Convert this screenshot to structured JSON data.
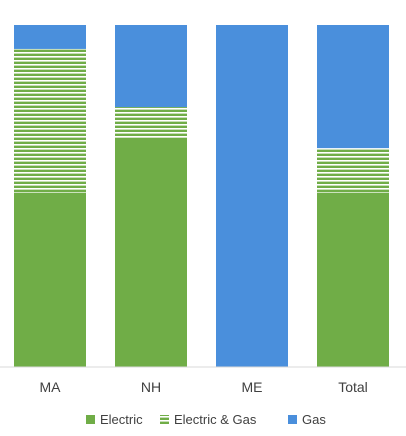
{
  "chart_data": {
    "type": "bar",
    "stacked": true,
    "normalized_percent": true,
    "categories": [
      "MA",
      "NH",
      "ME",
      "Total"
    ],
    "series": [
      {
        "name": "Electric",
        "values": [
          51,
          67,
          0,
          51
        ],
        "color": "#70AD47",
        "pattern": "solid"
      },
      {
        "name": "Electric & Gas",
        "values": [
          42,
          9,
          0,
          13
        ],
        "color": "#70AD47",
        "pattern": "horizontal-stripes"
      },
      {
        "name": "Gas",
        "values": [
          7,
          24,
          100,
          36
        ],
        "color": "#4A8FDC",
        "pattern": "solid"
      }
    ],
    "ylim": [
      0,
      100
    ],
    "grid": false,
    "legend": "bottom"
  }
}
